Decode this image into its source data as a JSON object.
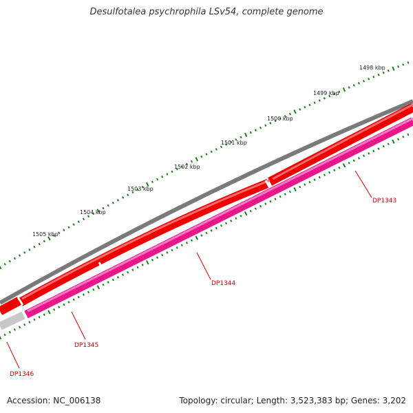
{
  "title": "Desulfotalea psychrophila LSv54, complete genome",
  "footer": {
    "accession": "Accession: NC_006138",
    "stats": "Topology: circular; Length: 3,523,383 bp; Genes: 3,202"
  },
  "colors": {
    "backbone": "#7a7a7a",
    "forward_gene": "#ee0000",
    "reverse_gene": "#e8188c",
    "other_gene": "#c8c8c8",
    "ticks": "#1a7a1a",
    "label": "#cc0000"
  },
  "ruler": {
    "labels": [
      "1498 kbp",
      "1499 kbp",
      "1500 kbp",
      "1501 kbp",
      "1502 kbp",
      "1503 kbp",
      "1504 kbp",
      "1505 kbp"
    ]
  },
  "genes": [
    {
      "label": "DP1343"
    },
    {
      "label": "DP1344"
    },
    {
      "label": "DP1345"
    },
    {
      "label": "DP1346"
    }
  ]
}
